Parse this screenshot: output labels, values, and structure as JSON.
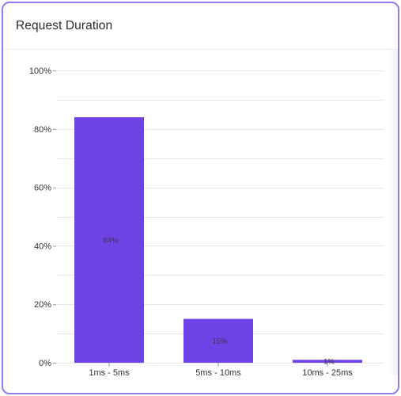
{
  "card": {
    "title": "Request Duration"
  },
  "colors": {
    "bar": "#6e42e5",
    "border": "#8b7cf0",
    "grid": "#e6e6e6"
  },
  "chart_data": {
    "type": "bar",
    "title": "Request Duration",
    "categories": [
      "1ms - 5ms",
      "5ms - 10ms",
      "10ms - 25ms"
    ],
    "values": [
      84,
      15,
      1
    ],
    "value_labels": [
      "84%",
      "15%",
      "1%"
    ],
    "ylim": [
      0,
      100
    ],
    "y_ticks": [
      0,
      20,
      40,
      60,
      80,
      100
    ],
    "y_tick_labels": [
      "0%",
      "20%",
      "40%",
      "60%",
      "80%",
      "100%"
    ],
    "xlabel": "",
    "ylabel": "",
    "grid": true,
    "legend": "none"
  }
}
